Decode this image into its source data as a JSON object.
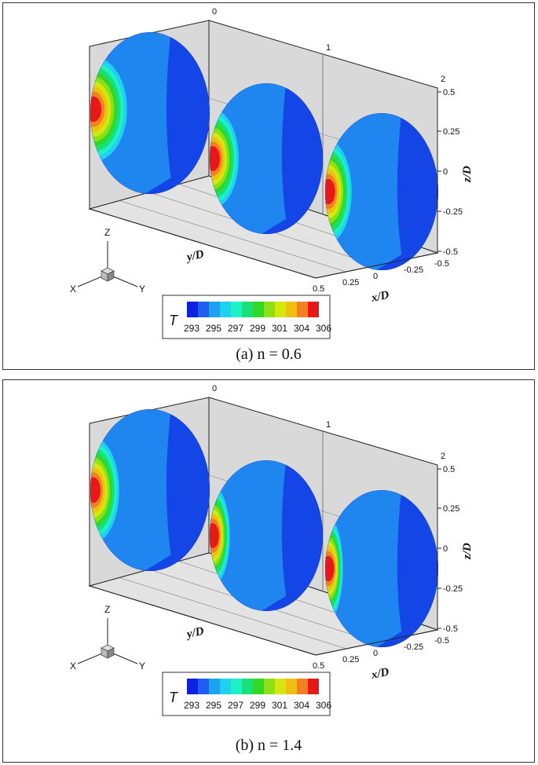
{
  "figures": [
    {
      "caption": "(a) n = 0.6",
      "x_axis": {
        "title": "x/D",
        "ticks": [
          "0.5",
          "0.25",
          "0",
          "-0.25",
          "-0.5"
        ]
      },
      "y_axis": {
        "title": "y/D",
        "ticks": [
          "0",
          "1",
          "2"
        ]
      },
      "z_axis": {
        "title": "z/D",
        "ticks": [
          "0.5",
          "0.25",
          "0",
          "-0.25",
          "-0.5"
        ]
      },
      "triad": {
        "x": "X",
        "y": "Y",
        "z": "Z"
      },
      "legend": {
        "title": "T",
        "ticks": [
          "293",
          "295",
          "297",
          "299",
          "301",
          "304",
          "306"
        ]
      },
      "hotspots": [
        {
          "slice": "y/D = 0",
          "peak_color": "#e8141a",
          "extent": 0.22
        },
        {
          "slice": "y/D = 1",
          "peak_color": "#f0691e",
          "extent": 0.17
        },
        {
          "slice": "y/D = 2",
          "peak_color": "#f0691e",
          "extent": 0.15
        }
      ]
    },
    {
      "caption": "(b) n = 1.4",
      "x_axis": {
        "title": "x/D",
        "ticks": [
          "0.5",
          "0.25",
          "0",
          "-0.25",
          "-0.5"
        ]
      },
      "y_axis": {
        "title": "y/D",
        "ticks": [
          "0",
          "1",
          "2"
        ]
      },
      "z_axis": {
        "title": "z/D",
        "ticks": [
          "0.5",
          "0.25",
          "0",
          "-0.25",
          "-0.5"
        ]
      },
      "triad": {
        "x": "X",
        "y": "Y",
        "z": "Z"
      },
      "legend": {
        "title": "T",
        "ticks": [
          "293",
          "295",
          "297",
          "299",
          "301",
          "304",
          "306"
        ]
      },
      "hotspots": [
        {
          "slice": "y/D = 0",
          "peak_color": "#e8141a",
          "extent": 0.16
        },
        {
          "slice": "y/D = 1",
          "peak_color": "#f0691e",
          "extent": 0.1
        },
        {
          "slice": "y/D = 2",
          "peak_color": "#e0e010",
          "extent": 0.08
        }
      ]
    }
  ],
  "colors": {
    "background": "#ffffff",
    "wall": "#d9d9d9",
    "floor": "#e3e3e3",
    "base_fluid": "#1f86f0",
    "cold_region": "#1445e6",
    "colormap": [
      "#1020e0",
      "#1f5ef0",
      "#1fa0f0",
      "#1fd0f0",
      "#1ff0c8",
      "#18e078",
      "#30d828",
      "#8ce018",
      "#d4e810",
      "#f0c010",
      "#f08020",
      "#e81818"
    ]
  }
}
